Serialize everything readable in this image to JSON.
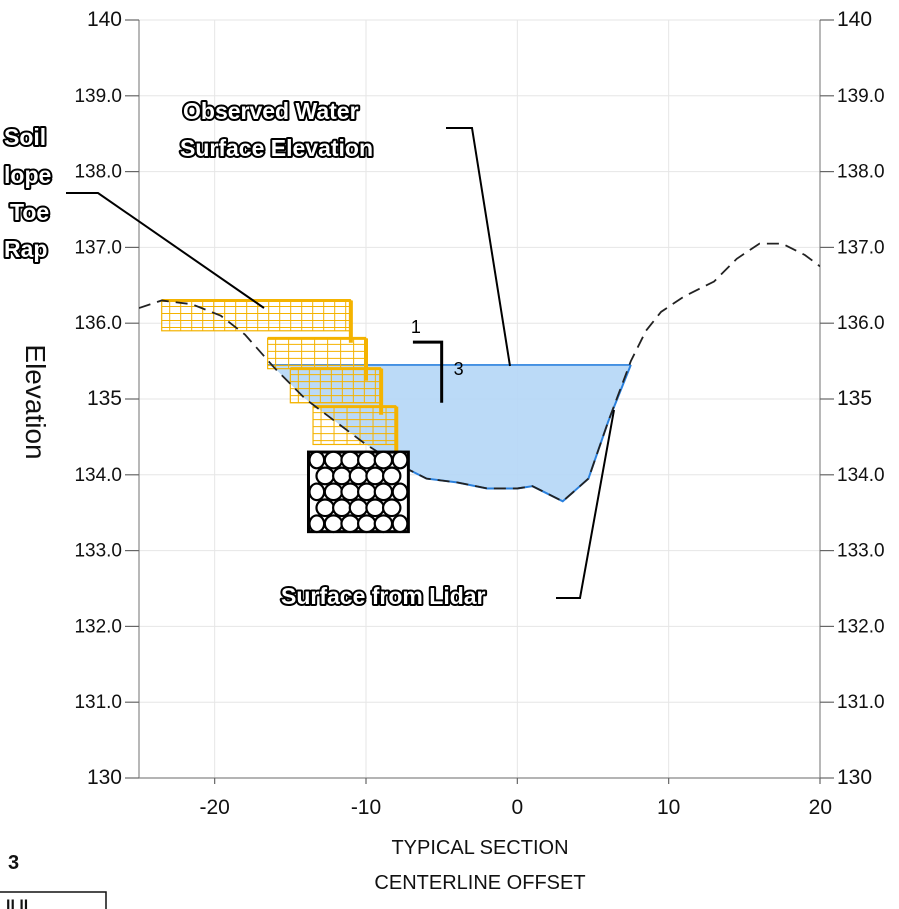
{
  "chart_data": {
    "type": "line",
    "xlabel": [
      "TYPICAL SECTION",
      "CENTERLINE OFFSET"
    ],
    "ylabel": "Elevation",
    "xlim": [
      -25,
      20
    ],
    "ylim": [
      130,
      140
    ],
    "x_ticks": [
      {
        "value": -20,
        "label": "-20"
      },
      {
        "value": -10,
        "label": "-10"
      },
      {
        "value": 0,
        "label": "0"
      },
      {
        "value": 10,
        "label": "10"
      },
      {
        "value": 20,
        "label": "20"
      }
    ],
    "y_ticks_left": [
      {
        "value": 140,
        "label": "140",
        "major": true
      },
      {
        "value": 139,
        "label": "139.0",
        "major": false
      },
      {
        "value": 138,
        "label": "138.0",
        "major": false
      },
      {
        "value": 137,
        "label": "137.0",
        "major": false
      },
      {
        "value": 136,
        "label": "136.0",
        "major": false
      },
      {
        "value": 135,
        "label": "135",
        "major": true
      },
      {
        "value": 134,
        "label": "134.0",
        "major": false
      },
      {
        "value": 133,
        "label": "133.0",
        "major": false
      },
      {
        "value": 132,
        "label": "132.0",
        "major": false
      },
      {
        "value": 131,
        "label": "131.0",
        "major": false
      },
      {
        "value": 130,
        "label": "130",
        "major": true
      }
    ],
    "y_ticks_right": [
      {
        "value": 140,
        "label": "140",
        "major": true
      },
      {
        "value": 139,
        "label": "139.0",
        "major": false
      },
      {
        "value": 138,
        "label": "138.0",
        "major": false
      },
      {
        "value": 137,
        "label": "137.0",
        "major": false
      },
      {
        "value": 136,
        "label": "136.0",
        "major": false
      },
      {
        "value": 135,
        "label": "135",
        "major": true
      },
      {
        "value": 134,
        "label": "134.0",
        "major": false
      },
      {
        "value": 133,
        "label": "133.0",
        "major": false
      },
      {
        "value": 132,
        "label": "132.0",
        "major": false
      },
      {
        "value": 131,
        "label": "131.0",
        "major": false
      },
      {
        "value": 130,
        "label": "130",
        "major": true
      }
    ],
    "grid": true,
    "lidar_surface": {
      "x": [
        -25,
        -23.5,
        -21.5,
        -19.6,
        -18,
        -16,
        -14,
        -12,
        -10,
        -8,
        -6,
        -4,
        -2,
        0,
        1,
        3,
        4.7,
        6,
        7.5,
        8.5,
        9.5,
        11,
        13,
        14.5,
        16,
        17.5,
        19,
        20
      ],
      "y": [
        136.2,
        136.3,
        136.25,
        136.1,
        135.85,
        135.4,
        135.0,
        134.7,
        134.4,
        134.15,
        133.95,
        133.9,
        133.82,
        133.82,
        133.85,
        133.65,
        133.95,
        134.7,
        135.5,
        135.9,
        136.15,
        136.35,
        136.55,
        136.85,
        137.05,
        137.05,
        136.9,
        136.75
      ]
    },
    "water_surface": {
      "elevation": 135.45,
      "x_left": -16.5,
      "x_right": 7.5
    },
    "water_bed": {
      "x": [
        -8,
        -6,
        -4,
        -2,
        0,
        1,
        3,
        4.7,
        6,
        7.5
      ],
      "y": [
        134.15,
        133.95,
        133.9,
        133.82,
        133.82,
        133.85,
        133.65,
        133.95,
        134.7,
        135.45
      ]
    },
    "soil_lifts": [
      {
        "x_left": -23.5,
        "x_right": -11,
        "y_top": 136.3,
        "y_bottom": 135.9
      },
      {
        "x_left": -16.5,
        "x_right": -10,
        "y_top": 135.8,
        "y_bottom": 135.4
      },
      {
        "x_left": -15,
        "x_right": -9,
        "y_top": 135.4,
        "y_bottom": 134.95
      },
      {
        "x_left": -13.5,
        "x_right": -8,
        "y_top": 134.9,
        "y_bottom": 134.4
      }
    ],
    "toe_rock": {
      "x_left": -13.8,
      "x_right": -7.2,
      "y_top": 134.3,
      "y_bottom": 133.25
    },
    "slope_indicator": {
      "run_label": "1",
      "rise_label": "3",
      "x_top": -5,
      "y_top": 135.75,
      "y_bottom": 134.95,
      "x_run": -6.9
    },
    "annotations": [
      {
        "text": "Observed Water",
        "line": 1
      },
      {
        "text": "Surface Elevation",
        "line": 2
      }
    ],
    "lidar_label": "Surface from Lidar",
    "left_label_fragments": [
      "Soil",
      "lope",
      "Toe",
      "Rap"
    ],
    "colors": {
      "water_fill": "#b4d6f6",
      "water_line": "#2a80dd",
      "soil": "#f4b300",
      "lidar": "#222222",
      "grid": "#e6e6e6",
      "axis": "#888888"
    }
  },
  "page_fragments": {
    "bottom_left_number": "3",
    "bottom_left_box_text": "ll ll"
  }
}
